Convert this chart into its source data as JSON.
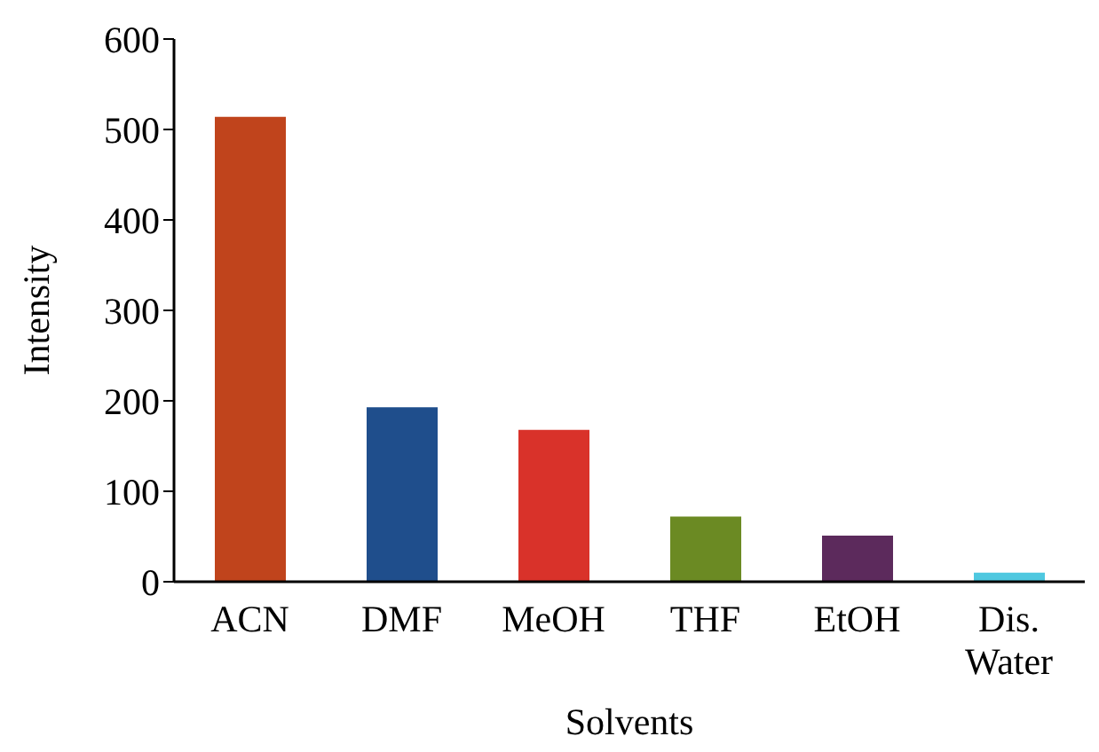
{
  "chart_data": {
    "type": "bar",
    "xlabel": "Solvents",
    "ylabel": "Intensity",
    "categories": [
      "ACN",
      "DMF",
      "MeOH",
      "THF",
      "EtOH",
      "Dis. Water"
    ],
    "values": [
      514,
      193,
      168,
      72,
      51,
      10
    ],
    "colors": [
      "#c0441c",
      "#1f4e8c",
      "#d9322a",
      "#6b8a23",
      "#5c2a5c",
      "#4fc8e0"
    ],
    "ylim": [
      0,
      600
    ],
    "yticks": [
      0,
      100,
      200,
      300,
      400,
      500,
      600
    ],
    "grid": false,
    "legend": false
  }
}
